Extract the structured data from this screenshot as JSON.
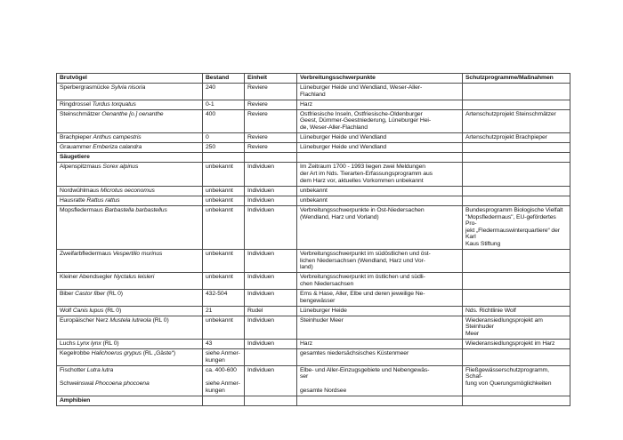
{
  "colors": {
    "page_background": "#ffffff",
    "table_border": "#4d4d4d",
    "text": "#151515"
  },
  "table": {
    "header": [
      "Brutvögel",
      "Bestand",
      "Einheit",
      "Verbreitungsschwerpunkte",
      "Schutzprogramme/Maßnahmen"
    ],
    "rows": [
      {
        "type": "species",
        "name": [
          {
            "t": "Sperbergrasmücke ",
            "i": false
          },
          {
            "t": "Sylvia nisoria",
            "i": true
          }
        ],
        "bestand": "240",
        "einheit": "Reviere",
        "verbreitung": "Lüneburger Heide und Wendland, Weser-Aller-\nFlachland",
        "schutz": ""
      },
      {
        "type": "species",
        "name": [
          {
            "t": "Ringdrossel ",
            "i": false
          },
          {
            "t": "Turdus torquatus",
            "i": true
          }
        ],
        "bestand": "0-1",
        "einheit": "Reviere",
        "verbreitung": "Harz",
        "schutz": ""
      },
      {
        "type": "species",
        "name": [
          {
            "t": "Steinschmätzer ",
            "i": false
          },
          {
            "t": "Oenanthe [o.] oenanthe",
            "i": true
          }
        ],
        "bestand": "400",
        "einheit": "Reviere",
        "verbreitung": "Ostfriesische Inseln, Ostfriesische-Oldenburger\nGeest, Dümmer-Geestniederung, Lüneburger Hei-\nde, Weser-Aller-Flachland",
        "schutz": "Artenschutzprojekt Steinschmätzer"
      },
      {
        "type": "species",
        "name": [
          {
            "t": "Brachpieper ",
            "i": false
          },
          {
            "t": "Anthus campestris",
            "i": true
          }
        ],
        "bestand": "0",
        "einheit": "Reviere",
        "verbreitung": "Lüneburger Heide und Wendland",
        "schutz": "Artenschutzprojekt Brachpieper"
      },
      {
        "type": "species",
        "name": [
          {
            "t": "Grauammer ",
            "i": false
          },
          {
            "t": "Emberiza calandra",
            "i": true
          }
        ],
        "bestand": "250",
        "einheit": "Reviere",
        "verbreitung": "Lüneburger Heide und Wendland",
        "schutz": ""
      },
      {
        "type": "section",
        "label": "Säugetiere"
      },
      {
        "type": "species",
        "name": [
          {
            "t": "Alpenspitzmaus ",
            "i": false
          },
          {
            "t": "Sorex alpinus",
            "i": true
          }
        ],
        "bestand": "unbekannt",
        "einheit": "Individuen",
        "verbreitung": "Im Zeitraum 1700 - 1993 liegen zwei Meldungen\nder Art im Nds. Tierarten-Erfassungsprogramm aus\ndem Harz vor, aktuelles Vorkommen unbekannt",
        "schutz": ""
      },
      {
        "type": "species",
        "name": [
          {
            "t": "Nordwühlmaus ",
            "i": false
          },
          {
            "t": "Microtus oeconomus",
            "i": true
          }
        ],
        "bestand": "unbekannt",
        "einheit": "Individuen",
        "verbreitung": "unbekannt",
        "schutz": ""
      },
      {
        "type": "species",
        "name": [
          {
            "t": "Hausratte ",
            "i": false
          },
          {
            "t": "Rattus rattus",
            "i": true
          }
        ],
        "bestand": "unbekannt",
        "einheit": "Individuen",
        "verbreitung": "unbekannt",
        "schutz": ""
      },
      {
        "type": "species",
        "name": [
          {
            "t": "Mopsfledermaus ",
            "i": false
          },
          {
            "t": "Barbastella barbastellus",
            "i": true
          }
        ],
        "bestand": "unbekannt",
        "einheit": "Individuen",
        "verbreitung": "Verbreitungsschwerpunkte in Ost-Niedersachen\n(Wendland, Harz und Vorland)",
        "schutz": "Bundesprogramm Biologische Vielfalt\n\"Mopsfledermaus\", EU-gefördertes Pro-\njekt „Fledermauswinterquartiere“ der Karl\nKaus Stiftung"
      },
      {
        "type": "species",
        "name": [
          {
            "t": "Zweifarbfledermaus ",
            "i": false
          },
          {
            "t": "Vespertilio murinus",
            "i": true
          }
        ],
        "bestand": "unbekannt",
        "einheit": "Individuen",
        "verbreitung": "Verbreitungsschwerpunkt im südöstlichen und öst-\nlichen Niedersachsen (Wendland, Harz und Vor-\nland)",
        "schutz": ""
      },
      {
        "type": "species",
        "name": [
          {
            "t": "Kleiner Abendsegler ",
            "i": false
          },
          {
            "t": "Nyctalus leisleri",
            "i": true
          }
        ],
        "bestand": "unbekannt",
        "einheit": "Individuen",
        "verbreitung": "Verbreitungsschwerpunkt im östlichen und südli-\nchen Niedersachsen",
        "schutz": ""
      },
      {
        "type": "species",
        "name": [
          {
            "t": "Biber ",
            "i": false
          },
          {
            "t": "Castor fiber",
            "i": true
          },
          {
            "t": " (RL 0)",
            "i": false
          }
        ],
        "bestand": "432-504",
        "einheit": "Individuen",
        "verbreitung": "Ems & Hase, Aller, Elbe und deren jeweilige Ne-\nbengewässer",
        "schutz": ""
      },
      {
        "type": "species",
        "name": [
          {
            "t": "Wolf ",
            "i": false
          },
          {
            "t": "Canis lupus",
            "i": true
          },
          {
            "t": " (RL 0)",
            "i": false
          }
        ],
        "bestand": "21",
        "einheit": "Rudel",
        "verbreitung": "Lüneburger Heide",
        "schutz": "Nds. Richtlinie Wolf"
      },
      {
        "type": "species",
        "name": [
          {
            "t": "Europäischer Nerz ",
            "i": false
          },
          {
            "t": "Mustela lutreola",
            "i": true
          },
          {
            "t": " (RL 0)",
            "i": false
          }
        ],
        "bestand": "unbekannt",
        "einheit": "Individuen",
        "verbreitung": "Steinhuder Meer",
        "schutz": "Wiederansiedlungsprojekt am Steinhuder\nMeer"
      },
      {
        "type": "species",
        "name": [
          {
            "t": "Luchs ",
            "i": false
          },
          {
            "t": "Lynx lynx",
            "i": true
          },
          {
            "t": " (RL 0)",
            "i": false
          }
        ],
        "bestand": "43",
        "einheit": "Individuen",
        "verbreitung": "Harz",
        "schutz": "Wiederansiedlungsprojekt im Harz"
      },
      {
        "type": "species",
        "name": [
          {
            "t": "Kegelrobbe ",
            "i": false
          },
          {
            "t": "Halichoerus grypus",
            "i": true
          },
          {
            "t": " (RL „Gäste“)",
            "i": false
          }
        ],
        "bestand": "siehe Anmer-\nkungen",
        "einheit": "",
        "verbreitung": "gesamtes niedersächsisches Küstenmeer",
        "schutz": ""
      },
      {
        "type": "species",
        "name": [
          {
            "t": "Fischotter ",
            "i": false
          },
          {
            "t": "Lutra lutra",
            "i": true
          },
          {
            "t": "\n\n",
            "i": false
          },
          {
            "t": "Schweinswal ",
            "i": false
          },
          {
            "t": "Phocoena phocoena",
            "i": true
          }
        ],
        "bestand": "ca. 400-600\n\nsiehe Anmer-\nkungen",
        "einheit": "Individuen",
        "verbreitung": "Elbe- und Aller-Einzugsgebiete und Nebengewäs-\nser\n\ngesamte Nordsee",
        "schutz": "Fließgewässerschutzprogramm, Schaf-\nfung von Querungsmöglichkeiten"
      },
      {
        "type": "section",
        "label": "Amphibien"
      }
    ]
  }
}
